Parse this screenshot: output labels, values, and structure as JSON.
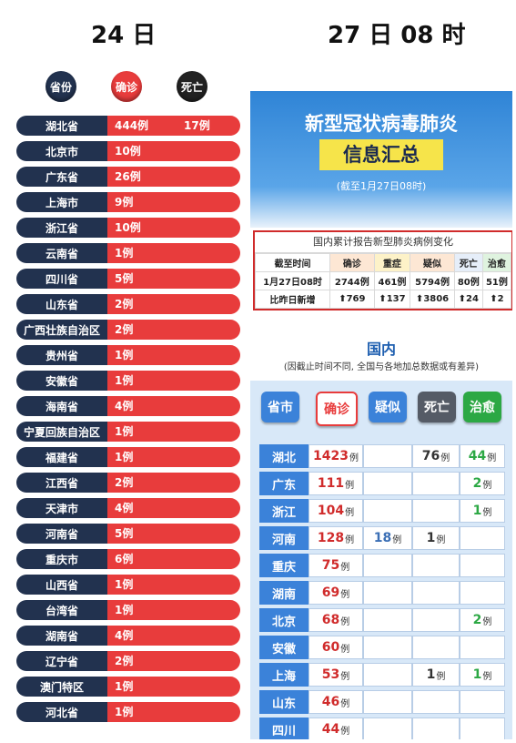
{
  "headers": {
    "left": "24 日",
    "right": "27 日 08 时"
  },
  "left_panel": {
    "col_province": "省份",
    "col_confirmed": "确诊",
    "col_death": "死亡",
    "rows": [
      {
        "province": "湖北省",
        "confirmed": "444例",
        "death": "17例"
      },
      {
        "province": "北京市",
        "confirmed": "10例",
        "death": ""
      },
      {
        "province": "广东省",
        "confirmed": "26例",
        "death": ""
      },
      {
        "province": "上海市",
        "confirmed": "9例",
        "death": ""
      },
      {
        "province": "浙江省",
        "confirmed": "10例",
        "death": ""
      },
      {
        "province": "云南省",
        "confirmed": "1例",
        "death": ""
      },
      {
        "province": "四川省",
        "confirmed": "5例",
        "death": ""
      },
      {
        "province": "山东省",
        "confirmed": "2例",
        "death": ""
      },
      {
        "province": "广西壮族自治区",
        "confirmed": "2例",
        "death": ""
      },
      {
        "province": "贵州省",
        "confirmed": "1例",
        "death": ""
      },
      {
        "province": "安徽省",
        "confirmed": "1例",
        "death": ""
      },
      {
        "province": "海南省",
        "confirmed": "4例",
        "death": ""
      },
      {
        "province": "宁夏回族自治区",
        "confirmed": "1例",
        "death": ""
      },
      {
        "province": "福建省",
        "confirmed": "1例",
        "death": ""
      },
      {
        "province": "江西省",
        "confirmed": "2例",
        "death": ""
      },
      {
        "province": "天津市",
        "confirmed": "4例",
        "death": ""
      },
      {
        "province": "河南省",
        "confirmed": "5例",
        "death": ""
      },
      {
        "province": "重庆市",
        "confirmed": "6例",
        "death": ""
      },
      {
        "province": "山西省",
        "confirmed": "1例",
        "death": ""
      },
      {
        "province": "台湾省",
        "confirmed": "1例",
        "death": ""
      },
      {
        "province": "湖南省",
        "confirmed": "4例",
        "death": ""
      },
      {
        "province": "辽宁省",
        "confirmed": "2例",
        "death": ""
      },
      {
        "province": "澳门特区",
        "confirmed": "1例",
        "death": ""
      },
      {
        "province": "河北省",
        "confirmed": "1例",
        "death": ""
      }
    ]
  },
  "right_panel": {
    "title": "新型冠状病毒肺炎",
    "subtitle": "信息汇总",
    "as_of": "(截至1月27日08时)",
    "stats": {
      "title": "国内累计报告新型肺炎病例变化",
      "headers": [
        "截至时间",
        "确诊",
        "重症",
        "疑似",
        "死亡",
        "治愈"
      ],
      "row1": [
        "1月27日08时",
        "2744例",
        "461例",
        "5794例",
        "80例",
        "51例"
      ],
      "row2_label": "比昨日新增",
      "row2": [
        "769",
        "137",
        "3806",
        "24",
        "2"
      ],
      "arrow": "⬆"
    },
    "section_title": "国内",
    "note": "(因截止时间不同, 全国与各地加总数据或有差异)",
    "buttons": [
      "省市",
      "确诊",
      "疑似",
      "死亡",
      "治愈"
    ],
    "unit": "例",
    "rows": [
      {
        "province": "湖北",
        "confirmed": "1423",
        "suspected": "",
        "death": "76",
        "cured": "44"
      },
      {
        "province": "广东",
        "confirmed": "111",
        "suspected": "",
        "death": "",
        "cured": "2"
      },
      {
        "province": "浙江",
        "confirmed": "104",
        "suspected": "",
        "death": "",
        "cured": "1"
      },
      {
        "province": "河南",
        "confirmed": "128",
        "suspected": "18",
        "death": "1",
        "cured": ""
      },
      {
        "province": "重庆",
        "confirmed": "75",
        "suspected": "",
        "death": "",
        "cured": ""
      },
      {
        "province": "湖南",
        "confirmed": "69",
        "suspected": "",
        "death": "",
        "cured": ""
      },
      {
        "province": "北京",
        "confirmed": "68",
        "suspected": "",
        "death": "",
        "cured": "2"
      },
      {
        "province": "安徽",
        "confirmed": "60",
        "suspected": "",
        "death": "",
        "cured": ""
      },
      {
        "province": "上海",
        "confirmed": "53",
        "suspected": "",
        "death": "1",
        "cured": "1"
      },
      {
        "province": "山东",
        "confirmed": "46",
        "suspected": "",
        "death": "",
        "cured": ""
      },
      {
        "province": "四川",
        "confirmed": "44",
        "suspected": "",
        "death": "",
        "cured": ""
      }
    ]
  },
  "colors": {
    "navy": "#22324f",
    "red": "#e83c3c",
    "blue": "#3b82d9",
    "green": "#2ca844",
    "gray": "#555b66"
  }
}
